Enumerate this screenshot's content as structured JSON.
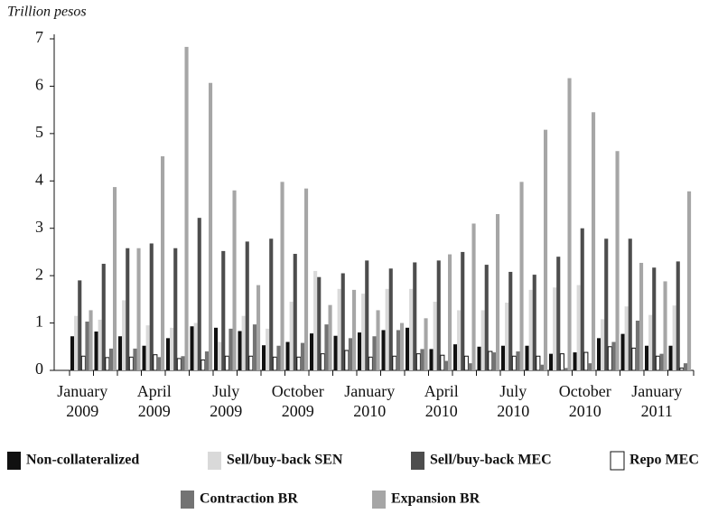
{
  "chart_data": {
    "type": "bar",
    "y_axis_label": "Trillion pesos",
    "categories": [
      "January 2009",
      null,
      null,
      "April 2009",
      null,
      null,
      "July 2009",
      null,
      null,
      "October 2009",
      null,
      null,
      "January 2010",
      null,
      null,
      "April 2010",
      null,
      null,
      "July 2010",
      null,
      null,
      "October 2010",
      null,
      null,
      "January 2011",
      null
    ],
    "ylim": [
      0,
      7
    ],
    "yticks": [
      0,
      1,
      2,
      3,
      4,
      5,
      6,
      7
    ],
    "series": [
      {
        "name": "Non-collateralized",
        "color": "#111111",
        "values": [
          0.72,
          0.82,
          0.72,
          0.52,
          0.68,
          0.93,
          0.9,
          0.83,
          0.53,
          0.6,
          0.78,
          0.73,
          0.8,
          0.85,
          0.9,
          0.45,
          0.55,
          0.5,
          0.52,
          0.52,
          0.35,
          0.38,
          0.68,
          0.77,
          0.52,
          0.52
        ]
      },
      {
        "name": "Sell/buy-back SEN",
        "color": "#d9d9d9",
        "values": [
          1.15,
          1.07,
          1.48,
          0.95,
          0.9,
          1.0,
          0.6,
          1.15,
          0.88,
          1.45,
          2.1,
          1.72,
          1.62,
          1.72,
          1.72,
          1.45,
          1.27,
          1.27,
          1.43,
          1.7,
          1.75,
          1.8,
          1.08,
          1.35,
          1.17,
          1.37
        ]
      },
      {
        "name": "Sell/buy-back MEC",
        "color": "#4d4d4d",
        "values": [
          1.9,
          2.25,
          2.58,
          2.68,
          2.58,
          3.22,
          2.52,
          2.72,
          2.78,
          2.46,
          1.97,
          2.05,
          2.32,
          2.15,
          2.28,
          2.32,
          2.5,
          2.23,
          2.08,
          2.02,
          2.4,
          3.0,
          2.78,
          2.78,
          2.17,
          2.3
        ]
      },
      {
        "name": "Repo MEC",
        "color": "#ffffff",
        "values": [
          0.3,
          0.27,
          0.28,
          0.33,
          0.25,
          0.22,
          0.3,
          0.3,
          0.28,
          0.28,
          0.35,
          0.42,
          0.28,
          0.3,
          0.35,
          0.32,
          0.3,
          0.4,
          0.3,
          0.3,
          0.35,
          0.38,
          0.5,
          0.47,
          0.3,
          0.05
        ]
      },
      {
        "name": "Contraction BR",
        "color": "#737373",
        "values": [
          1.03,
          0.46,
          0.46,
          0.28,
          0.3,
          0.4,
          0.88,
          0.97,
          0.52,
          0.58,
          0.97,
          0.68,
          0.72,
          0.85,
          0.45,
          0.2,
          0.15,
          0.38,
          0.4,
          0.12,
          0.05,
          0.15,
          0.6,
          1.05,
          0.35,
          0.15
        ]
      },
      {
        "name": "Expansion BR",
        "color": "#a6a6a6",
        "values": [
          1.27,
          3.87,
          2.58,
          4.52,
          6.83,
          6.07,
          3.8,
          1.8,
          3.98,
          3.84,
          1.38,
          1.7,
          1.27,
          1.0,
          1.1,
          2.45,
          3.1,
          3.3,
          3.98,
          5.08,
          6.17,
          5.45,
          4.63,
          2.27,
          1.88,
          3.78
        ]
      }
    ]
  }
}
